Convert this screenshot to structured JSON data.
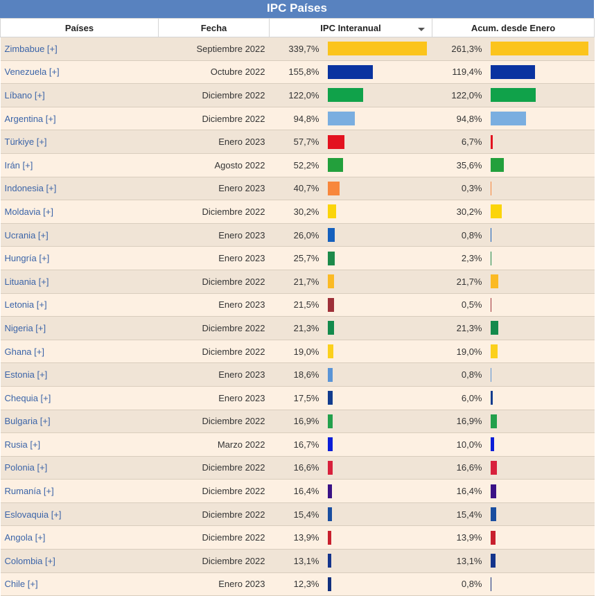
{
  "header": {
    "title": "IPC Países"
  },
  "columns": {
    "country": "Países",
    "date": "Fecha",
    "yoy": "IPC Interanual",
    "ytd": "Acum. desde Enero"
  },
  "rows": [
    {
      "country": "Zimbabue [+]",
      "date": "Septiembre 2022",
      "yoy": "339,7%",
      "yoy_value": 339.7,
      "ytd": "261,3%",
      "ytd_value": 261.3,
      "color": "#fbc41c"
    },
    {
      "country": "Venezuela [+]",
      "date": "Octubre 2022",
      "yoy": "155,8%",
      "yoy_value": 155.8,
      "ytd": "119,4%",
      "ytd_value": 119.4,
      "color": "#0a33a0"
    },
    {
      "country": "Líbano [+]",
      "date": "Diciembre 2022",
      "yoy": "122,0%",
      "yoy_value": 122.0,
      "ytd": "122,0%",
      "ytd_value": 122.0,
      "color": "#10a24a"
    },
    {
      "country": "Argentina [+]",
      "date": "Diciembre 2022",
      "yoy": "94,8%",
      "yoy_value": 94.8,
      "ytd": "94,8%",
      "ytd_value": 94.8,
      "color": "#7aaee0"
    },
    {
      "country": "Türkiye [+]",
      "date": "Enero 2023",
      "yoy": "57,7%",
      "yoy_value": 57.7,
      "ytd": "6,7%",
      "ytd_value": 6.7,
      "color": "#e3121f"
    },
    {
      "country": "Irán [+]",
      "date": "Agosto 2022",
      "yoy": "52,2%",
      "yoy_value": 52.2,
      "ytd": "35,6%",
      "ytd_value": 35.6,
      "color": "#23a03c"
    },
    {
      "country": "Indonesia [+]",
      "date": "Enero 2023",
      "yoy": "40,7%",
      "yoy_value": 40.7,
      "ytd": "0,3%",
      "ytd_value": 0.3,
      "color": "#f8873c"
    },
    {
      "country": "Moldavia [+]",
      "date": "Diciembre 2022",
      "yoy": "30,2%",
      "yoy_value": 30.2,
      "ytd": "30,2%",
      "ytd_value": 30.2,
      "color": "#fbd40a"
    },
    {
      "country": "Ucrania [+]",
      "date": "Enero 2023",
      "yoy": "26,0%",
      "yoy_value": 26.0,
      "ytd": "0,8%",
      "ytd_value": 0.8,
      "color": "#1560bd"
    },
    {
      "country": "Hungría [+]",
      "date": "Enero 2023",
      "yoy": "25,7%",
      "yoy_value": 25.7,
      "ytd": "2,3%",
      "ytd_value": 2.3,
      "color": "#1c8a4a"
    },
    {
      "country": "Lituania [+]",
      "date": "Diciembre 2022",
      "yoy": "21,7%",
      "yoy_value": 21.7,
      "ytd": "21,7%",
      "ytd_value": 21.7,
      "color": "#fbba24"
    },
    {
      "country": "Letonia [+]",
      "date": "Enero 2023",
      "yoy": "21,5%",
      "yoy_value": 21.5,
      "ytd": "0,5%",
      "ytd_value": 0.5,
      "color": "#9e3039"
    },
    {
      "country": "Nigeria [+]",
      "date": "Diciembre 2022",
      "yoy": "21,3%",
      "yoy_value": 21.3,
      "ytd": "21,3%",
      "ytd_value": 21.3,
      "color": "#138a4c"
    },
    {
      "country": "Ghana [+]",
      "date": "Diciembre 2022",
      "yoy": "19,0%",
      "yoy_value": 19.0,
      "ytd": "19,0%",
      "ytd_value": 19.0,
      "color": "#fbd01c"
    },
    {
      "country": "Estonia [+]",
      "date": "Enero 2023",
      "yoy": "18,6%",
      "yoy_value": 18.6,
      "ytd": "0,8%",
      "ytd_value": 0.8,
      "color": "#5a94d6"
    },
    {
      "country": "Chequia [+]",
      "date": "Enero 2023",
      "yoy": "17,5%",
      "yoy_value": 17.5,
      "ytd": "6,0%",
      "ytd_value": 6.0,
      "color": "#123c8e"
    },
    {
      "country": "Bulgaria [+]",
      "date": "Diciembre 2022",
      "yoy": "16,9%",
      "yoy_value": 16.9,
      "ytd": "16,9%",
      "ytd_value": 16.9,
      "color": "#23a04c"
    },
    {
      "country": "Rusia [+]",
      "date": "Marzo 2022",
      "yoy": "16,7%",
      "yoy_value": 16.7,
      "ytd": "10,0%",
      "ytd_value": 10.0,
      "color": "#0c1ed8"
    },
    {
      "country": "Polonia [+]",
      "date": "Diciembre 2022",
      "yoy": "16,6%",
      "yoy_value": 16.6,
      "ytd": "16,6%",
      "ytd_value": 16.6,
      "color": "#d8203c"
    },
    {
      "country": "Rumanía [+]",
      "date": "Diciembre 2022",
      "yoy": "16,4%",
      "yoy_value": 16.4,
      "ytd": "16,4%",
      "ytd_value": 16.4,
      "color": "#3a1286"
    },
    {
      "country": "Eslovaquia [+]",
      "date": "Diciembre 2022",
      "yoy": "15,4%",
      "yoy_value": 15.4,
      "ytd": "15,4%",
      "ytd_value": 15.4,
      "color": "#1a4ea0"
    },
    {
      "country": "Angola [+]",
      "date": "Diciembre 2022",
      "yoy": "13,9%",
      "yoy_value": 13.9,
      "ytd": "13,9%",
      "ytd_value": 13.9,
      "color": "#c8202e"
    },
    {
      "country": "Colombia [+]",
      "date": "Diciembre 2022",
      "yoy": "13,1%",
      "yoy_value": 13.1,
      "ytd": "13,1%",
      "ytd_value": 13.1,
      "color": "#14348c"
    },
    {
      "country": "Chile [+]",
      "date": "Enero 2023",
      "yoy": "12,3%",
      "yoy_value": 12.3,
      "ytd": "0,8%",
      "ytd_value": 0.8,
      "color": "#12307e"
    }
  ]
}
